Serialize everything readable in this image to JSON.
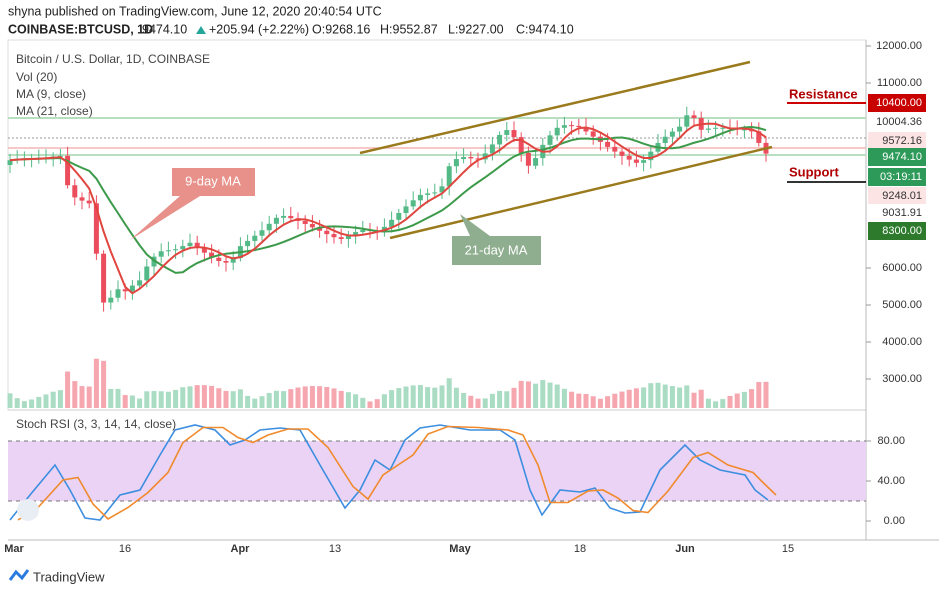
{
  "header": {
    "published": "shyna published on TradingView.com, June 12, 2020 20:40:54 UTC",
    "symbol": "COINBASE:BTCUSD, 1D",
    "last": "9474.10",
    "change": "+205.94 (+2.22%)",
    "ohlc": [
      "O:9268.16",
      "H:9552.87",
      "L:9227.00",
      "C:9474.10"
    ]
  },
  "legend": {
    "title": "Bitcoin / U.S. Dollar, 1D, COINBASE",
    "items": [
      "Vol (20)",
      "MA (9, close)",
      "MA (21, close)"
    ]
  },
  "price_axis": {
    "ticks": [
      {
        "value": 12000,
        "label": "12000.00"
      },
      {
        "value": 11000,
        "label": "11000.00"
      },
      {
        "value": 6000,
        "label": "6000.00"
      },
      {
        "value": 5000,
        "label": "5000.00"
      },
      {
        "value": 4000,
        "label": "4000.00"
      },
      {
        "value": 3000,
        "label": "3000.00"
      }
    ],
    "price_labels": [
      "10400.00",
      "10004.36",
      "9572.16",
      "9474.10",
      "03:19:11",
      "9248.01",
      "9031.91",
      "8300.00"
    ]
  },
  "annotations": {
    "resistance": "Resistance",
    "support": "Support",
    "ma9": "9-day MA",
    "ma21": "21-day MA"
  },
  "rsi": {
    "title": "Stoch RSI (3, 3, 14, 14, close)",
    "ticks": [
      {
        "value": 80,
        "label": "80.00"
      },
      {
        "value": 40,
        "label": "40.00"
      },
      {
        "value": 0,
        "label": "0.00"
      }
    ]
  },
  "time_axis": [
    "Mar",
    "16",
    "Apr",
    "13",
    "May",
    "18",
    "Jun",
    "15"
  ],
  "footer": "TradingView"
}
